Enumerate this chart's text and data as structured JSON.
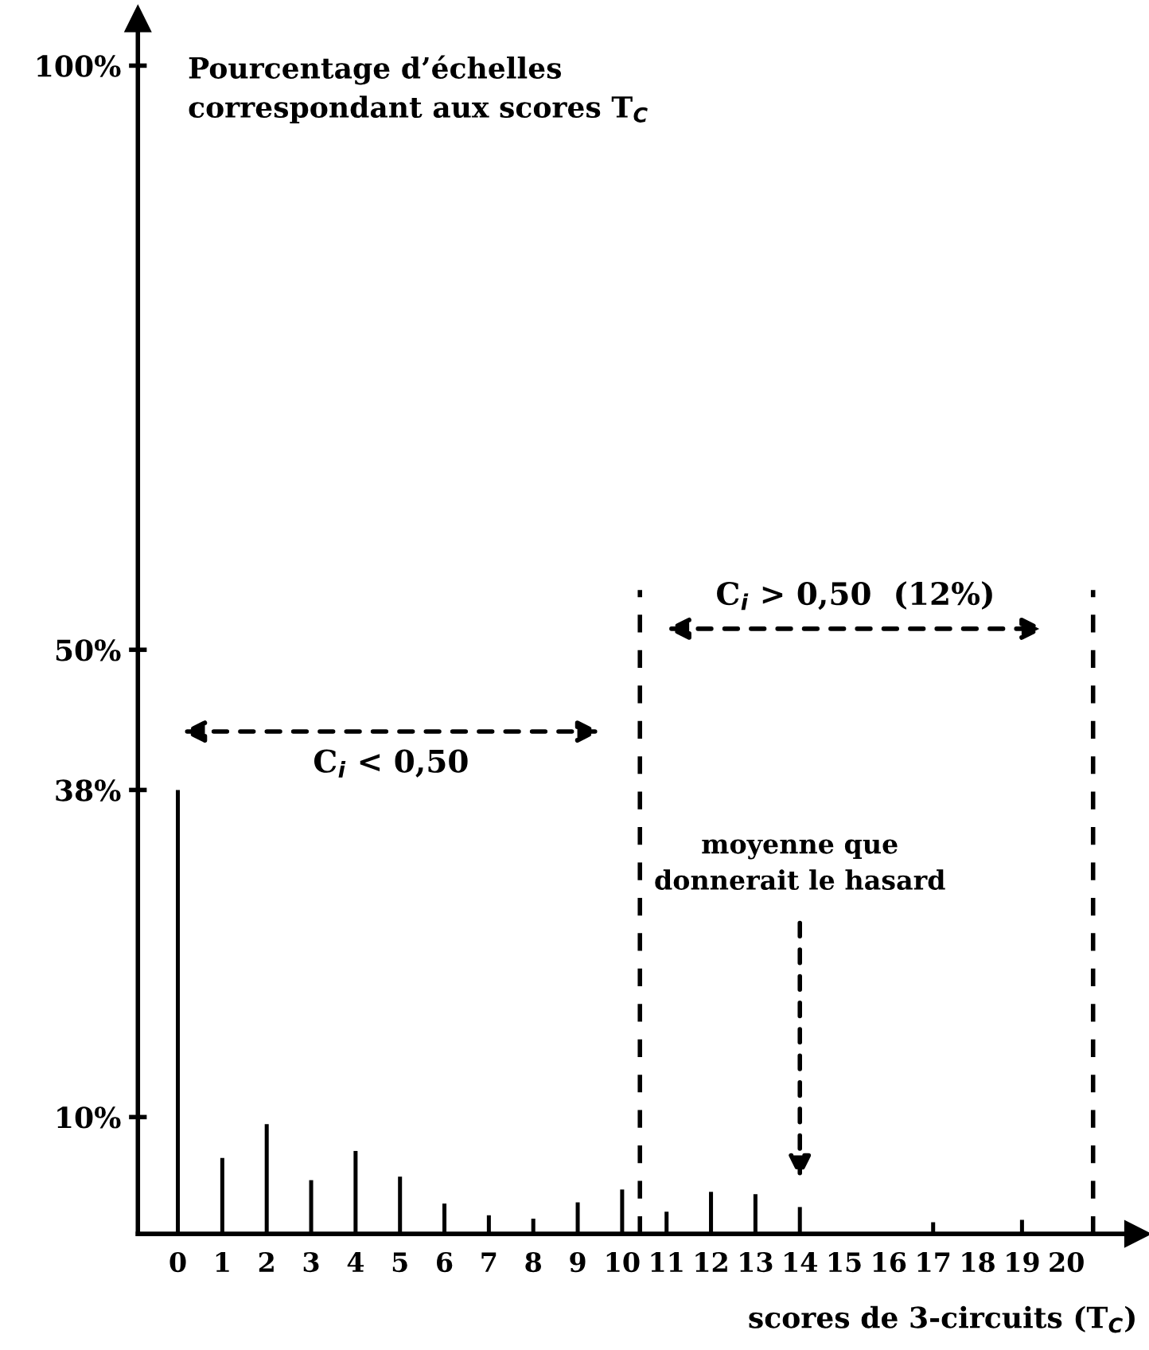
{
  "chart_data": {
    "type": "bar",
    "ylabel": "Pourcentage d’échelles\ncorrespondant aux scores T$_{C}$",
    "xlabel": "scores de 3-circuits (T$_{C}$)",
    "categories": [
      "0",
      "1",
      "2",
      "3",
      "4",
      "5",
      "6",
      "7",
      "8",
      "9",
      "10",
      "11",
      "12",
      "13",
      "14",
      "15",
      "16",
      "17",
      "18",
      "19",
      "20"
    ],
    "values": [
      38,
      6.5,
      9.4,
      4.6,
      7.1,
      4.9,
      2.6,
      1.6,
      1.3,
      2.7,
      3.8,
      1.9,
      3.6,
      3.4,
      2.3,
      0,
      0,
      1.0,
      0,
      1.2,
      0
    ],
    "color": "#000000",
    "ylim": [
      0,
      104
    ],
    "yticks": [
      {
        "value": 10,
        "label": "10%"
      },
      {
        "value": 38,
        "label": "38%"
      },
      {
        "value": 50,
        "label": "50%"
      },
      {
        "value": 100,
        "label": "100%"
      }
    ],
    "annotations": [
      "C$_{i}$ < 0,50",
      "C$_{i}$ > 0,50  (12%)",
      "moyenne que\ndonnerait le hasard"
    ],
    "grid": false,
    "legend": false
  }
}
